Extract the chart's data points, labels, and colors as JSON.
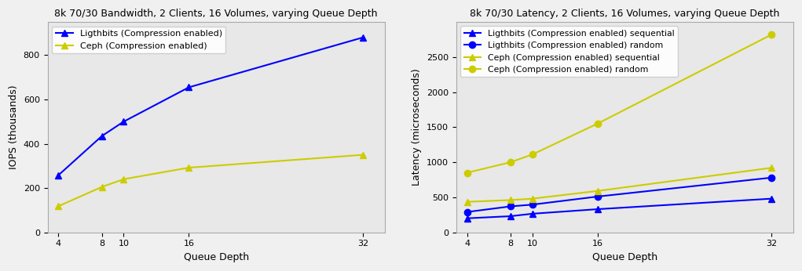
{
  "left": {
    "title": "8k 70/30 Bandwidth, 2 Clients, 16 Volumes, varying Queue Depth",
    "xlabel": "Queue Depth",
    "ylabel": "IOPS (thousands)",
    "x": [
      4,
      8,
      10,
      16,
      32
    ],
    "lightbits_iops": [
      258,
      435,
      500,
      655,
      880
    ],
    "ceph_iops": [
      118,
      205,
      240,
      292,
      350
    ],
    "lightbits_color": "#0000ff",
    "ceph_color": "#cccc00",
    "lightbits_label": "Ligthbits (Compression enabled)",
    "ceph_label": "Ceph (Compression enabled)",
    "ylim": [
      0,
      950
    ],
    "yticks": [
      0,
      200,
      400,
      600,
      800
    ]
  },
  "right": {
    "title": "8k 70/30 Latency, 2 Clients, 16 Volumes, varying Queue Depth",
    "xlabel": "Queue Depth",
    "ylabel": "Latency (microseconds)",
    "x": [
      4,
      8,
      10,
      16,
      32
    ],
    "lightbits_seq": [
      200,
      230,
      265,
      330,
      480
    ],
    "lightbits_rand": [
      290,
      370,
      395,
      510,
      780
    ],
    "ceph_seq": [
      435,
      460,
      480,
      590,
      920
    ],
    "ceph_rand": [
      850,
      1000,
      1110,
      1550,
      2820
    ],
    "lightbits_color": "#0000ff",
    "ceph_color": "#cccc00",
    "lightbits_seq_label": "Ligthbits (Compression enabled) sequential",
    "lightbits_rand_label": "Ligthbits (Compression enabled) random",
    "ceph_seq_label": "Ceph (Compression enabled) sequential",
    "ceph_rand_label": "Ceph (Compression enabled) random",
    "ylim": [
      0,
      3000
    ],
    "yticks": [
      0,
      500,
      1000,
      1500,
      2000,
      2500
    ]
  },
  "fig_facecolor": "#f0f0f0",
  "axes_facecolor": "#e8e8e8"
}
